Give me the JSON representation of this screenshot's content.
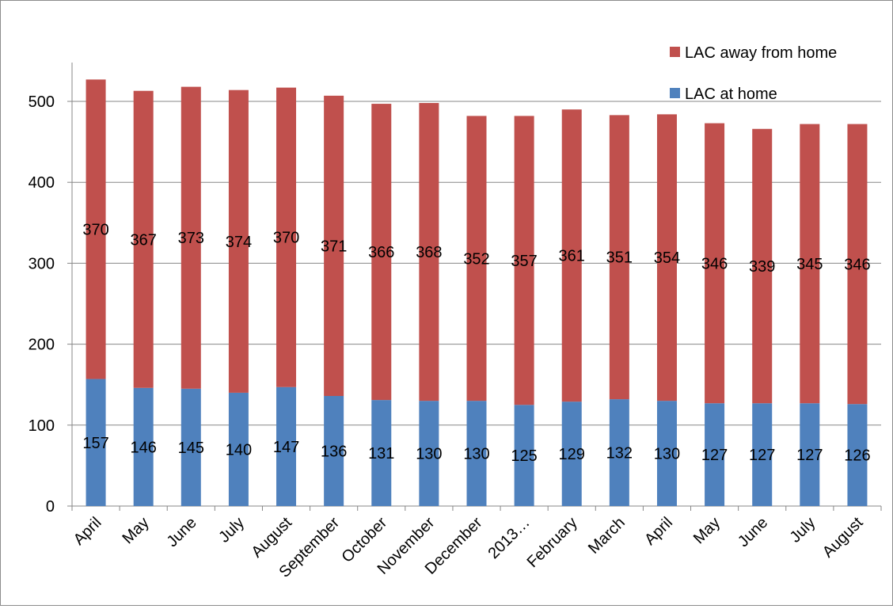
{
  "chart_data": {
    "type": "bar",
    "stacked": true,
    "title": "",
    "xlabel": "",
    "ylabel": "",
    "categories": [
      "April",
      "May",
      "June",
      "July",
      "August",
      "September",
      "October",
      "November",
      "December",
      "2013…",
      "February",
      "March",
      "April",
      "May",
      "June",
      "July",
      "August"
    ],
    "series": [
      {
        "name": "LAC at home",
        "color": "#4f81bd",
        "values": [
          157,
          146,
          145,
          140,
          147,
          136,
          131,
          130,
          130,
          125,
          129,
          132,
          130,
          127,
          127,
          127,
          126
        ]
      },
      {
        "name": "LAC away from home",
        "color": "#c0504d",
        "values": [
          370,
          367,
          373,
          374,
          370,
          371,
          366,
          368,
          352,
          357,
          361,
          351,
          354,
          346,
          339,
          345,
          346
        ]
      }
    ],
    "ylim": [
      0,
      550
    ],
    "yticks": [
      0,
      100,
      200,
      300,
      400,
      500
    ],
    "grid": true,
    "legend": "top-right",
    "data_labels": true
  }
}
